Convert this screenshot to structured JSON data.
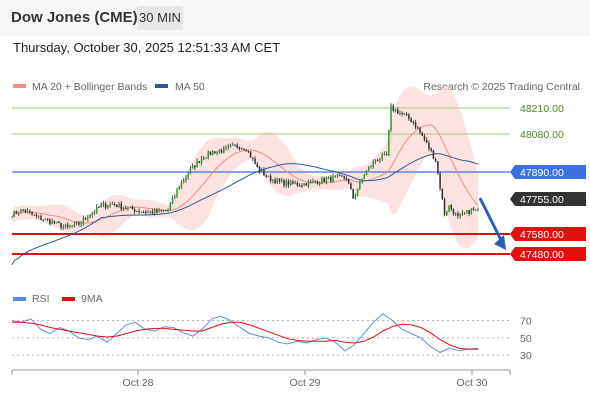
{
  "header": {
    "title": "Dow Jones (CME)",
    "timeframe": "30 MIN",
    "timestamp": "Thursday, October 30, 2025 12:51:33 AM CET"
  },
  "legend": {
    "items": [
      {
        "label": "MA 20 + Bollinger Bands",
        "color": "#f28b82"
      },
      {
        "label": "MA 50",
        "color": "#2a5a9a"
      }
    ],
    "credit": "Research © 2025 Trading Central"
  },
  "rsi_legend": {
    "items": [
      {
        "label": "RSI",
        "color": "#5b8ee0"
      },
      {
        "label": "9MA",
        "color": "#e01010"
      }
    ]
  },
  "chart_data": [
    {
      "type": "line",
      "title": "Dow Jones (CME)",
      "timeframe": "30 MIN",
      "x_ticks": [
        "Oct 28",
        "Oct 29",
        "Oct 30"
      ],
      "ylim": [
        47330,
        48260
      ],
      "levels": [
        {
          "value": 48210.0,
          "label": "48210.00",
          "color": "#9fcf7a",
          "kind": "resistance"
        },
        {
          "value": 48080.0,
          "label": "48080.00",
          "color": "#9fcf7a",
          "kind": "resistance"
        },
        {
          "value": 47890.0,
          "label": "47890.00",
          "color": "#3b72e0",
          "kind": "pivot"
        },
        {
          "value": 47755.0,
          "label": "47755.00",
          "color": "#333333",
          "kind": "last"
        },
        {
          "value": 47580.0,
          "label": "47580.00",
          "color": "#e01010",
          "kind": "support"
        },
        {
          "value": 47480.0,
          "label": "47480.00",
          "color": "#e01010",
          "kind": "support"
        }
      ],
      "price_keypoints": [
        [
          0,
          47680
        ],
        [
          5,
          47700
        ],
        [
          10,
          47670
        ],
        [
          15,
          47650
        ],
        [
          20,
          47630
        ],
        [
          25,
          47610
        ],
        [
          30,
          47630
        ],
        [
          35,
          47680
        ],
        [
          40,
          47720
        ],
        [
          45,
          47730
        ],
        [
          50,
          47715
        ],
        [
          55,
          47700
        ],
        [
          60,
          47690
        ],
        [
          65,
          47690
        ],
        [
          70,
          47700
        ],
        [
          75,
          47820
        ],
        [
          80,
          47900
        ],
        [
          85,
          47960
        ],
        [
          90,
          47990
        ],
        [
          95,
          48000
        ],
        [
          100,
          48020
        ],
        [
          105,
          48010
        ],
        [
          110,
          47910
        ],
        [
          115,
          47860
        ],
        [
          120,
          47840
        ],
        [
          125,
          47830
        ],
        [
          130,
          47830
        ],
        [
          135,
          47840
        ],
        [
          140,
          47850
        ],
        [
          145,
          47860
        ],
        [
          150,
          47860
        ],
        [
          153,
          47760
        ],
        [
          158,
          47880
        ],
        [
          163,
          47950
        ],
        [
          168,
          47970
        ],
        [
          170,
          48210
        ],
        [
          175,
          48180
        ],
        [
          180,
          48140
        ],
        [
          185,
          48050
        ],
        [
          190,
          47950
        ],
        [
          194,
          47680
        ],
        [
          196,
          47720
        ],
        [
          200,
          47660
        ],
        [
          206,
          47700
        ],
        [
          209,
          47690
        ]
      ],
      "trend_arrow": {
        "from": 47760,
        "to": 47520,
        "direction": "down"
      },
      "series": [
        {
          "name": "MA 20 + Bollinger Bands",
          "color": "#f28b82"
        },
        {
          "name": "MA 50",
          "color": "#2a5a9a"
        }
      ]
    },
    {
      "type": "line",
      "title": "RSI",
      "ylim": [
        22,
        80
      ],
      "y_ticks": [
        70,
        50,
        30
      ],
      "series": [
        {
          "name": "RSI",
          "color": "#5b8ee0",
          "values": [
            70,
            68,
            72,
            60,
            55,
            62,
            58,
            50,
            48,
            52,
            45,
            55,
            65,
            68,
            60,
            58,
            63,
            62,
            56,
            52,
            60,
            72,
            75,
            70,
            62,
            55,
            52,
            50,
            45,
            43,
            46,
            44,
            48,
            50,
            45,
            35,
            42,
            55,
            68,
            78,
            70,
            60,
            55,
            50,
            40,
            33,
            38,
            35,
            37,
            38
          ]
        },
        {
          "name": "9MA",
          "color": "#e01010",
          "values": [
            68,
            68,
            67,
            65,
            62,
            60,
            58,
            56,
            54,
            52,
            51,
            52,
            55,
            58,
            60,
            61,
            61,
            60,
            59,
            58,
            58,
            62,
            66,
            68,
            68,
            65,
            61,
            57,
            53,
            49,
            47,
            46,
            46,
            46,
            47,
            45,
            44,
            46,
            51,
            58,
            63,
            66,
            65,
            62,
            56,
            48,
            42,
            38,
            37,
            37
          ]
        }
      ]
    }
  ]
}
